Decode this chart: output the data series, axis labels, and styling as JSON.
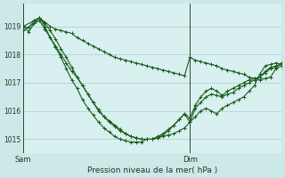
{
  "bg_color": "#cce8e8",
  "plot_bg_color": "#d8f0f0",
  "grid_color": "#aacccc",
  "line_color": "#1a5c1a",
  "marker_color": "#1a5c1a",
  "xlabel": "Pression niveau de la mer( hPa )",
  "ylim": [
    1014.5,
    1019.8
  ],
  "xlim": [
    0,
    48
  ],
  "sam_x": 0,
  "dim_x": 31,
  "line1_x": [
    0,
    1,
    2,
    3,
    4,
    5,
    6,
    7,
    8,
    9,
    10,
    11,
    12,
    13,
    14,
    15,
    16,
    17,
    18,
    19,
    20,
    21,
    22,
    23,
    24,
    25,
    26,
    27,
    28,
    29,
    30,
    31,
    32,
    33,
    34,
    35,
    36,
    37,
    38,
    39,
    40,
    41,
    42,
    43,
    44,
    45,
    46,
    47,
    48
  ],
  "line1_y": [
    1019.0,
    1018.95,
    1019.2,
    1019.3,
    1019.15,
    1019.0,
    1018.9,
    1018.85,
    1018.8,
    1018.75,
    1018.6,
    1018.5,
    1018.4,
    1018.3,
    1018.2,
    1018.1,
    1018.0,
    1017.9,
    1017.85,
    1017.8,
    1017.75,
    1017.7,
    1017.65,
    1017.6,
    1017.55,
    1017.5,
    1017.45,
    1017.4,
    1017.35,
    1017.3,
    1017.25,
    1017.9,
    1017.8,
    1017.75,
    1017.7,
    1017.65,
    1017.6,
    1017.5,
    1017.45,
    1017.4,
    1017.35,
    1017.3,
    1017.2,
    1017.15,
    1017.1,
    1017.15,
    1017.2,
    1017.5,
    1017.6
  ],
  "line2_x": [
    0,
    1,
    2,
    3,
    4,
    5,
    6,
    7,
    8,
    9,
    10,
    11,
    12,
    13,
    14,
    15,
    16,
    17,
    18,
    19,
    20,
    21,
    22,
    23,
    24,
    25,
    26,
    27,
    28,
    29,
    30,
    31,
    32,
    33,
    34,
    35,
    36,
    37,
    38,
    39,
    40,
    41,
    42,
    43,
    44,
    45,
    46,
    47,
    48
  ],
  "line2_y": [
    1019.0,
    1018.8,
    1019.1,
    1019.2,
    1018.9,
    1018.6,
    1018.3,
    1018.0,
    1017.7,
    1017.4,
    1017.2,
    1016.9,
    1016.6,
    1016.3,
    1016.0,
    1015.8,
    1015.6,
    1015.45,
    1015.3,
    1015.2,
    1015.1,
    1015.05,
    1015.0,
    1015.0,
    1015.0,
    1015.05,
    1015.1,
    1015.15,
    1015.2,
    1015.3,
    1015.4,
    1015.6,
    1015.8,
    1016.0,
    1016.1,
    1016.0,
    1015.9,
    1016.1,
    1016.2,
    1016.3,
    1016.4,
    1016.5,
    1016.7,
    1016.9,
    1017.3,
    1017.6,
    1017.65,
    1017.7,
    1017.65
  ],
  "line3_x": [
    0,
    2,
    3,
    4,
    5,
    6,
    7,
    8,
    9,
    10,
    11,
    12,
    13,
    14,
    15,
    16,
    17,
    18,
    19,
    20,
    21,
    22,
    23,
    24,
    25,
    26,
    27,
    28,
    29,
    30,
    31,
    32,
    33,
    34,
    35,
    36,
    37,
    38,
    39,
    40,
    41,
    42,
    43,
    44,
    45,
    46,
    47,
    48
  ],
  "line3_y": [
    1018.85,
    1019.1,
    1019.3,
    1019.1,
    1018.85,
    1018.55,
    1018.2,
    1017.9,
    1017.55,
    1017.2,
    1016.9,
    1016.6,
    1016.3,
    1016.05,
    1015.8,
    1015.65,
    1015.5,
    1015.35,
    1015.2,
    1015.1,
    1015.05,
    1015.0,
    1015.0,
    1015.0,
    1015.05,
    1015.15,
    1015.3,
    1015.5,
    1015.7,
    1015.9,
    1015.6,
    1016.1,
    1016.3,
    1016.5,
    1016.6,
    1016.55,
    1016.5,
    1016.6,
    1016.65,
    1016.8,
    1016.9,
    1017.0,
    1017.1,
    1017.2,
    1017.4,
    1017.55,
    1017.6,
    1017.65
  ],
  "line4_x": [
    0,
    2,
    3,
    4,
    5,
    6,
    7,
    8,
    9,
    10,
    11,
    12,
    13,
    14,
    15,
    16,
    17,
    18,
    19,
    20,
    21,
    22,
    23,
    24,
    25,
    26,
    27,
    28,
    29,
    30,
    31,
    32,
    33,
    34,
    35,
    36,
    37,
    38,
    39,
    40,
    41,
    42,
    43,
    44,
    45,
    46,
    47,
    48
  ],
  "line4_y": [
    1019.0,
    1019.2,
    1019.3,
    1019.0,
    1018.6,
    1018.25,
    1017.9,
    1017.5,
    1017.1,
    1016.8,
    1016.4,
    1016.1,
    1015.85,
    1015.6,
    1015.4,
    1015.25,
    1015.1,
    1015.0,
    1014.95,
    1014.9,
    1014.9,
    1014.9,
    1015.0,
    1015.0,
    1015.1,
    1015.2,
    1015.35,
    1015.5,
    1015.7,
    1015.9,
    1015.75,
    1016.2,
    1016.5,
    1016.7,
    1016.8,
    1016.7,
    1016.55,
    1016.7,
    1016.8,
    1016.9,
    1017.0,
    1017.1,
    1017.15,
    1017.2,
    1017.35,
    1017.5,
    1017.55,
    1017.7
  ]
}
